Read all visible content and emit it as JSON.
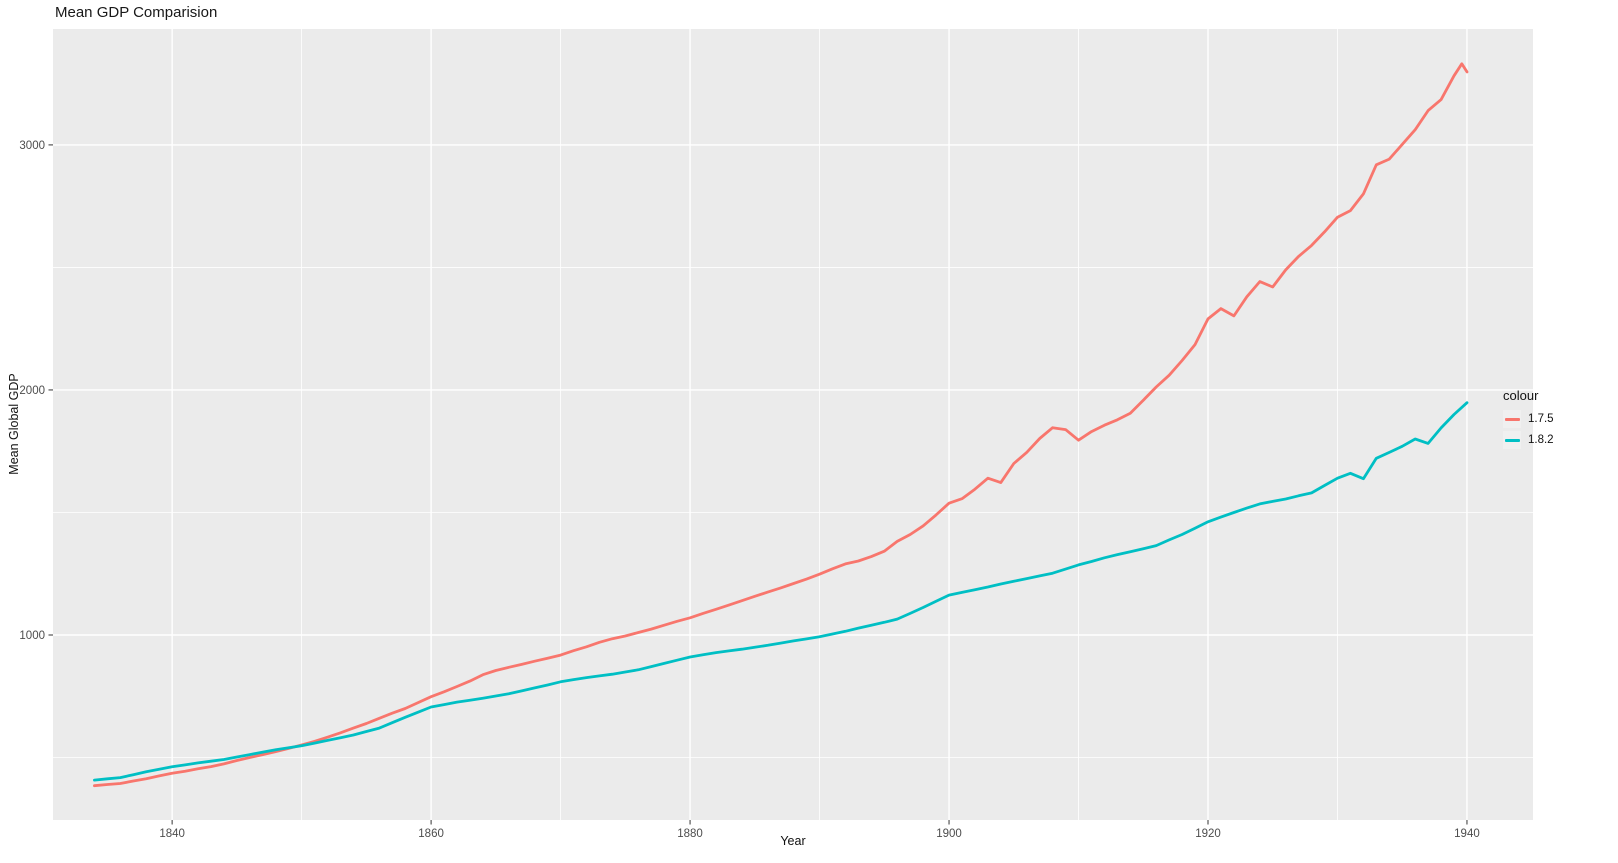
{
  "chart_data": {
    "type": "line",
    "title": "Mean GDP Comparision",
    "xlabel": "Year",
    "ylabel": "Mean Global GDP",
    "legend": {
      "title": "colour",
      "position": "right"
    },
    "panel": {
      "background": "#EBEBEB",
      "gridline_color": "#FFFFFF"
    },
    "axis": {
      "tick_label_color": "#4D4D4D",
      "tick_mark_color": "#333333",
      "x_domain": [
        1830.8,
        1945.1
      ],
      "y_domain": [
        245,
        3473
      ],
      "x_ticks": [
        1840,
        1860,
        1880,
        1900,
        1920,
        1940
      ],
      "x_minor_ticks": [
        1850,
        1870,
        1890,
        1910,
        1930
      ],
      "y_ticks": [
        1000,
        2000,
        3000
      ],
      "y_minor_ticks": [
        500,
        1500,
        2500
      ],
      "grid": true
    },
    "series": [
      {
        "name": "1.7.5",
        "color": "#F8766D",
        "points": [
          [
            1834,
            385
          ],
          [
            1835,
            390
          ],
          [
            1836,
            394
          ],
          [
            1837,
            404
          ],
          [
            1838,
            413
          ],
          [
            1839,
            425
          ],
          [
            1840,
            436
          ],
          [
            1841,
            444
          ],
          [
            1842,
            454
          ],
          [
            1843,
            463
          ],
          [
            1844,
            474
          ],
          [
            1845,
            488
          ],
          [
            1846,
            500
          ],
          [
            1847,
            512
          ],
          [
            1848,
            524
          ],
          [
            1849,
            537
          ],
          [
            1850,
            551
          ],
          [
            1851,
            566
          ],
          [
            1852,
            583
          ],
          [
            1853,
            601
          ],
          [
            1854,
            620
          ],
          [
            1855,
            639
          ],
          [
            1856,
            660
          ],
          [
            1857,
            681
          ],
          [
            1858,
            700
          ],
          [
            1859,
            724
          ],
          [
            1860,
            748
          ],
          [
            1861,
            768
          ],
          [
            1862,
            790
          ],
          [
            1863,
            812
          ],
          [
            1864,
            838
          ],
          [
            1865,
            855
          ],
          [
            1866,
            868
          ],
          [
            1867,
            880
          ],
          [
            1868,
            893
          ],
          [
            1869,
            905
          ],
          [
            1870,
            918
          ],
          [
            1871,
            936
          ],
          [
            1872,
            952
          ],
          [
            1873,
            970
          ],
          [
            1874,
            985
          ],
          [
            1875,
            996
          ],
          [
            1876,
            1010
          ],
          [
            1877,
            1024
          ],
          [
            1878,
            1040
          ],
          [
            1879,
            1056
          ],
          [
            1880,
            1070
          ],
          [
            1881,
            1088
          ],
          [
            1882,
            1105
          ],
          [
            1883,
            1122
          ],
          [
            1884,
            1140
          ],
          [
            1885,
            1158
          ],
          [
            1886,
            1175
          ],
          [
            1887,
            1192
          ],
          [
            1888,
            1210
          ],
          [
            1889,
            1228
          ],
          [
            1890,
            1248
          ],
          [
            1891,
            1270
          ],
          [
            1892,
            1290
          ],
          [
            1893,
            1302
          ],
          [
            1894,
            1320
          ],
          [
            1895,
            1342
          ],
          [
            1896,
            1382
          ],
          [
            1897,
            1410
          ],
          [
            1898,
            1445
          ],
          [
            1899,
            1490
          ],
          [
            1900,
            1538
          ],
          [
            1901,
            1556
          ],
          [
            1902,
            1595
          ],
          [
            1903,
            1640
          ],
          [
            1904,
            1622
          ],
          [
            1905,
            1700
          ],
          [
            1906,
            1745
          ],
          [
            1907,
            1802
          ],
          [
            1908,
            1846
          ],
          [
            1909,
            1838
          ],
          [
            1910,
            1795
          ],
          [
            1911,
            1830
          ],
          [
            1912,
            1856
          ],
          [
            1913,
            1878
          ],
          [
            1914,
            1905
          ],
          [
            1915,
            1958
          ],
          [
            1916,
            2012
          ],
          [
            1917,
            2060
          ],
          [
            1918,
            2120
          ],
          [
            1919,
            2185
          ],
          [
            1920,
            2290
          ],
          [
            1921,
            2332
          ],
          [
            1922,
            2302
          ],
          [
            1923,
            2380
          ],
          [
            1924,
            2442
          ],
          [
            1925,
            2420
          ],
          [
            1926,
            2490
          ],
          [
            1927,
            2545
          ],
          [
            1928,
            2590
          ],
          [
            1929,
            2645
          ],
          [
            1930,
            2705
          ],
          [
            1931,
            2732
          ],
          [
            1932,
            2800
          ],
          [
            1933,
            2919
          ],
          [
            1934,
            2942
          ],
          [
            1935,
            3002
          ],
          [
            1936,
            3062
          ],
          [
            1937,
            3140
          ],
          [
            1938,
            3185
          ],
          [
            1939,
            3282
          ],
          [
            1939.6,
            3331
          ],
          [
            1940,
            3298
          ]
        ]
      },
      {
        "name": "1.8.2",
        "color": "#00BFC4",
        "points": [
          [
            1834,
            408
          ],
          [
            1835,
            413
          ],
          [
            1836,
            418
          ],
          [
            1837,
            430
          ],
          [
            1838,
            442
          ],
          [
            1839,
            452
          ],
          [
            1840,
            462
          ],
          [
            1841,
            470
          ],
          [
            1842,
            478
          ],
          [
            1843,
            485
          ],
          [
            1844,
            492
          ],
          [
            1845,
            502
          ],
          [
            1846,
            512
          ],
          [
            1847,
            522
          ],
          [
            1848,
            532
          ],
          [
            1849,
            540
          ],
          [
            1850,
            548
          ],
          [
            1851,
            559
          ],
          [
            1852,
            570
          ],
          [
            1853,
            581
          ],
          [
            1854,
            592
          ],
          [
            1855,
            606
          ],
          [
            1856,
            620
          ],
          [
            1857,
            642
          ],
          [
            1858,
            664
          ],
          [
            1859,
            685
          ],
          [
            1860,
            706
          ],
          [
            1861,
            716
          ],
          [
            1862,
            726
          ],
          [
            1863,
            734
          ],
          [
            1864,
            742
          ],
          [
            1865,
            751
          ],
          [
            1866,
            760
          ],
          [
            1867,
            772
          ],
          [
            1868,
            784
          ],
          [
            1869,
            796
          ],
          [
            1870,
            809
          ],
          [
            1871,
            818
          ],
          [
            1872,
            826
          ],
          [
            1873,
            833
          ],
          [
            1874,
            840
          ],
          [
            1875,
            849
          ],
          [
            1876,
            858
          ],
          [
            1877,
            871
          ],
          [
            1878,
            884
          ],
          [
            1879,
            897
          ],
          [
            1880,
            910
          ],
          [
            1881,
            919
          ],
          [
            1882,
            928
          ],
          [
            1883,
            935
          ],
          [
            1884,
            942
          ],
          [
            1885,
            950
          ],
          [
            1886,
            958
          ],
          [
            1887,
            967
          ],
          [
            1888,
            976
          ],
          [
            1889,
            984
          ],
          [
            1890,
            993
          ],
          [
            1891,
            1004
          ],
          [
            1892,
            1015
          ],
          [
            1893,
            1028
          ],
          [
            1894,
            1040
          ],
          [
            1895,
            1052
          ],
          [
            1896,
            1065
          ],
          [
            1897,
            1088
          ],
          [
            1898,
            1112
          ],
          [
            1899,
            1138
          ],
          [
            1900,
            1163
          ],
          [
            1901,
            1174
          ],
          [
            1902,
            1185
          ],
          [
            1903,
            1196
          ],
          [
            1904,
            1208
          ],
          [
            1905,
            1219
          ],
          [
            1906,
            1230
          ],
          [
            1907,
            1241
          ],
          [
            1908,
            1252
          ],
          [
            1909,
            1269
          ],
          [
            1910,
            1286
          ],
          [
            1911,
            1300
          ],
          [
            1912,
            1315
          ],
          [
            1913,
            1328
          ],
          [
            1914,
            1340
          ],
          [
            1915,
            1352
          ],
          [
            1916,
            1365
          ],
          [
            1917,
            1388
          ],
          [
            1918,
            1410
          ],
          [
            1919,
            1436
          ],
          [
            1920,
            1462
          ],
          [
            1921,
            1481
          ],
          [
            1922,
            1500
          ],
          [
            1923,
            1518
          ],
          [
            1924,
            1535
          ],
          [
            1925,
            1545
          ],
          [
            1926,
            1555
          ],
          [
            1927,
            1568
          ],
          [
            1928,
            1580
          ],
          [
            1929,
            1610
          ],
          [
            1930,
            1640
          ],
          [
            1931,
            1660
          ],
          [
            1932,
            1638
          ],
          [
            1933,
            1721
          ],
          [
            1934,
            1745
          ],
          [
            1935,
            1770
          ],
          [
            1936,
            1800
          ],
          [
            1937,
            1782
          ],
          [
            1938,
            1845
          ],
          [
            1939,
            1900
          ],
          [
            1940,
            1948
          ]
        ]
      }
    ]
  }
}
